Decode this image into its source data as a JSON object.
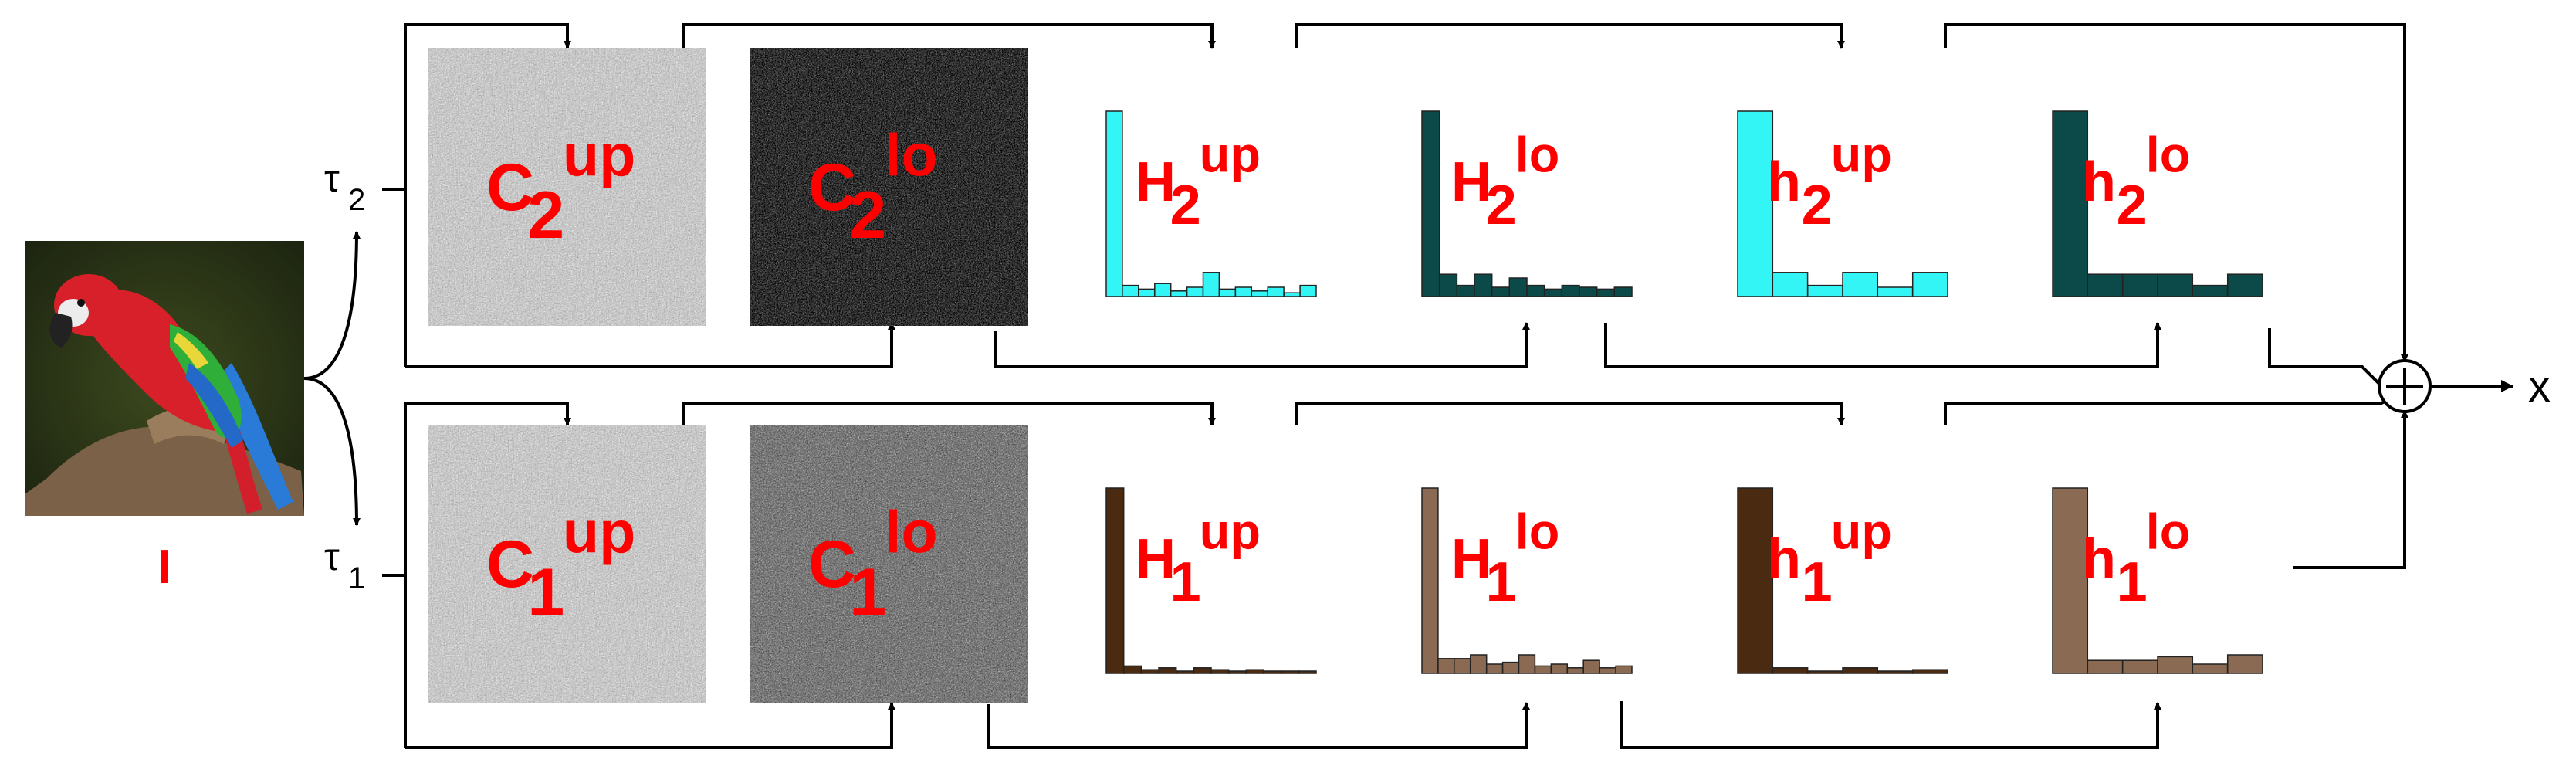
{
  "input": {
    "label": "I"
  },
  "taus": [
    {
      "base": "τ",
      "sub": "2"
    },
    {
      "base": "τ",
      "sub": "1"
    }
  ],
  "output": {
    "label": "x",
    "sum_symbol": "+"
  },
  "rows": [
    {
      "index": "2",
      "code_maps": [
        {
          "base": "C",
          "sub": "2",
          "sup": "up",
          "tone": "light"
        },
        {
          "base": "C",
          "sub": "2",
          "sup": "lo",
          "tone": "dark"
        }
      ],
      "histograms": [
        {
          "base": "H",
          "sub": "2",
          "sup": "up",
          "color": "#33f5f5",
          "values": [
            1.0,
            0.06,
            0.04,
            0.07,
            0.03,
            0.05,
            0.13,
            0.04,
            0.05,
            0.03,
            0.05,
            0.02,
            0.06
          ]
        },
        {
          "base": "H",
          "sub": "2",
          "sup": "lo",
          "color": "#0b4a48",
          "values": [
            1.0,
            0.12,
            0.06,
            0.12,
            0.05,
            0.1,
            0.06,
            0.04,
            0.06,
            0.05,
            0.04,
            0.05
          ]
        },
        {
          "base": "h",
          "sub": "2",
          "sup": "up",
          "color": "#33f5f5",
          "values": [
            1.0,
            0.13,
            0.06,
            0.13,
            0.05,
            0.13
          ]
        },
        {
          "base": "h",
          "sub": "2",
          "sup": "lo",
          "color": "#0b4a48",
          "values": [
            1.0,
            0.12,
            0.12,
            0.12,
            0.06,
            0.12
          ]
        }
      ]
    },
    {
      "index": "1",
      "code_maps": [
        {
          "base": "C",
          "sub": "1",
          "sup": "up",
          "tone": "light"
        },
        {
          "base": "C",
          "sub": "1",
          "sup": "lo",
          "tone": "mid"
        }
      ],
      "histograms": [
        {
          "base": "H",
          "sub": "1",
          "sup": "up",
          "color": "#4a2a10",
          "values": [
            1.0,
            0.04,
            0.02,
            0.03,
            0.01,
            0.03,
            0.02,
            0.01,
            0.02,
            0.01,
            0.01,
            0.01
          ]
        },
        {
          "base": "H",
          "sub": "1",
          "sup": "lo",
          "color": "#8a6a52",
          "values": [
            1.0,
            0.08,
            0.08,
            0.1,
            0.05,
            0.06,
            0.1,
            0.04,
            0.05,
            0.03,
            0.07,
            0.03,
            0.04
          ]
        },
        {
          "base": "h",
          "sub": "1",
          "sup": "up",
          "color": "#4a2a10",
          "values": [
            1.0,
            0.03,
            0.01,
            0.03,
            0.01,
            0.02
          ]
        },
        {
          "base": "h",
          "sub": "1",
          "sup": "lo",
          "color": "#8a6a52",
          "values": [
            1.0,
            0.07,
            0.07,
            0.09,
            0.05,
            0.1
          ]
        }
      ]
    }
  ]
}
